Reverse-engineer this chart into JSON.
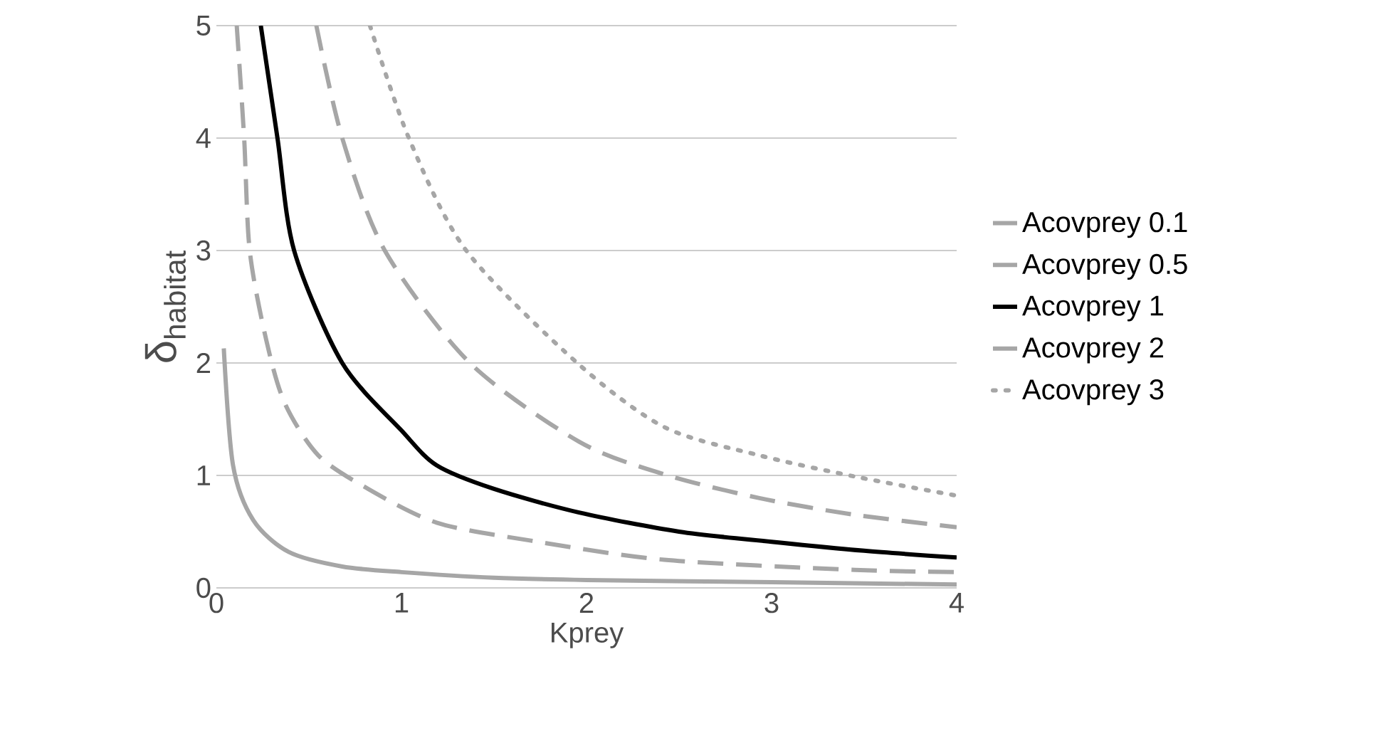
{
  "chart_data": {
    "type": "line",
    "xlabel": "Kprey",
    "ylabel": "δ$_{habitat}$",
    "xlim": [
      0,
      4
    ],
    "ylim": [
      0,
      5
    ],
    "xticks": [
      0,
      1,
      2,
      3,
      4
    ],
    "yticks": [
      0,
      1,
      2,
      3,
      4,
      5
    ],
    "grid": "y",
    "legend": "right",
    "marker": "none",
    "series": [
      {
        "name": "Acovprey 0.1",
        "color": "#a6a6a6",
        "line_style": "solid",
        "x": [
          0.04,
          0.09,
          0.2,
          0.39,
          0.68,
          1.0,
          1.5,
          2.0,
          3.0,
          4.0
        ],
        "values": [
          2.13,
          1.09,
          0.6,
          0.32,
          0.19,
          0.14,
          0.09,
          0.07,
          0.05,
          0.03
        ]
      },
      {
        "name": "Acovprey 0.5",
        "color": "#a6a6a6",
        "line_style": "dashed",
        "x": [
          0.11,
          0.15,
          0.18,
          0.27,
          0.37,
          0.55,
          0.81,
          1.19,
          1.7,
          2.42,
          3.45,
          4.0
        ],
        "values": [
          5,
          4,
          3,
          2.2,
          1.64,
          1.18,
          0.89,
          0.58,
          0.42,
          0.25,
          0.16,
          0.14
        ]
      },
      {
        "name": "Acovprey 1",
        "color": "#000000",
        "line_style": "solid",
        "x": [
          0.24,
          0.33,
          0.42,
          0.68,
          1.0,
          1.19,
          1.5,
          1.96,
          2.5,
          3.0,
          3.5,
          4.0
        ],
        "values": [
          5,
          4,
          3,
          2,
          1.4,
          1.09,
          0.88,
          0.67,
          0.5,
          0.41,
          0.33,
          0.27
        ]
      },
      {
        "name": "Acovprey 2",
        "color": "#a6a6a6",
        "line_style": "dashed",
        "x": [
          0.54,
          0.68,
          0.91,
          1.37,
          1.96,
          2.42,
          2.93,
          3.45,
          4.0
        ],
        "values": [
          5,
          4,
          3,
          2,
          1.3,
          1.01,
          0.8,
          0.65,
          0.54
        ]
      },
      {
        "name": "Acovprey 3",
        "color": "#a6a6a6",
        "line_style": "dotted",
        "x": [
          0.83,
          1.04,
          1.35,
          1.95,
          2.42,
          2.93,
          3.45,
          4.0
        ],
        "values": [
          5,
          4,
          3,
          2,
          1.43,
          1.18,
          0.99,
          0.82
        ]
      }
    ]
  }
}
